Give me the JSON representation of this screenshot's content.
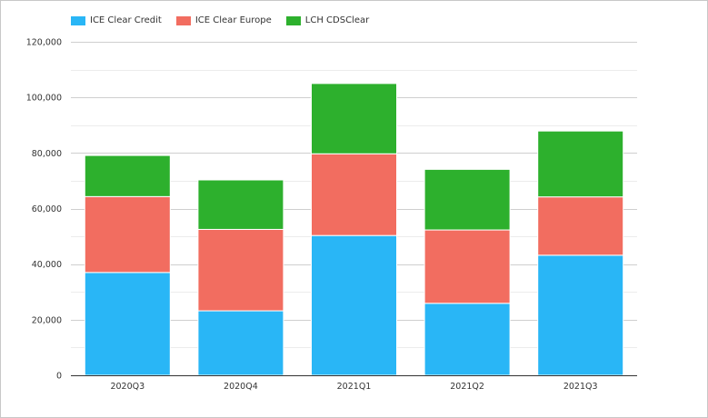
{
  "chart_data": {
    "type": "bar",
    "stacked": true,
    "title": "",
    "xlabel": "",
    "ylabel": "",
    "categories": [
      "2020Q3",
      "2020Q4",
      "2021Q1",
      "2021Q2",
      "2021Q3"
    ],
    "series": [
      {
        "name": "ICE Clear Credit",
        "color": "#29b6f6",
        "values": [
          37000,
          23200,
          50300,
          25900,
          43200
        ]
      },
      {
        "name": "ICE Clear Europe",
        "color": "#f26d60",
        "values": [
          27300,
          29300,
          29400,
          26400,
          21000
        ]
      },
      {
        "name": "LCH CDSClear",
        "color": "#2db02d",
        "values": [
          14800,
          17800,
          25300,
          21800,
          23700
        ]
      }
    ],
    "ylim": [
      0,
      120000
    ],
    "yticks": [
      "0",
      "20,000",
      "40,000",
      "60,000",
      "80,000",
      "100,000",
      "120,000"
    ],
    "grid": true,
    "legend": "top-left"
  }
}
